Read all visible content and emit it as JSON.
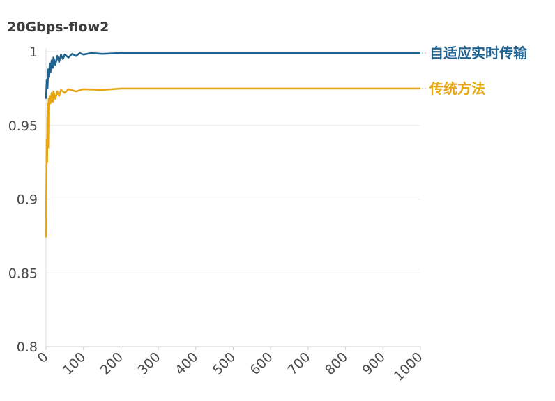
{
  "chart_data": {
    "type": "line",
    "title": "20Gbps-flow2",
    "xlabel": "",
    "ylabel": "",
    "xlim": [
      0,
      1000
    ],
    "ylim": [
      0.8,
      1.0
    ],
    "x_ticks": [
      0,
      100,
      200,
      300,
      400,
      500,
      600,
      700,
      800,
      900,
      1000
    ],
    "y_ticks": [
      {
        "value": 0.8,
        "label": "0.8"
      },
      {
        "value": 0.85,
        "label": "0.85"
      },
      {
        "value": 0.9,
        "label": "0.9"
      },
      {
        "value": 0.95,
        "label": "0.95"
      },
      {
        "value": 1.0,
        "label": "1"
      }
    ],
    "grid": "horizontal",
    "legend": "inline-right",
    "series": [
      {
        "name": "自适应实时传输",
        "color": "#1f6391",
        "x": [
          0,
          2,
          4,
          6,
          8,
          10,
          12,
          15,
          18,
          20,
          25,
          30,
          35,
          40,
          45,
          50,
          60,
          70,
          80,
          90,
          100,
          120,
          150,
          200,
          300,
          400,
          500,
          600,
          700,
          800,
          900,
          1000
        ],
        "values": [
          0.968,
          0.981,
          0.975,
          0.988,
          0.983,
          0.992,
          0.986,
          0.994,
          0.989,
          0.996,
          0.991,
          0.997,
          0.993,
          0.998,
          0.995,
          0.998,
          0.996,
          0.9985,
          0.997,
          0.999,
          0.998,
          0.999,
          0.9985,
          0.999,
          0.999,
          0.999,
          0.999,
          0.999,
          0.999,
          0.999,
          0.999,
          0.999
        ]
      },
      {
        "name": "传统方法",
        "color": "#e8a710",
        "x": [
          0,
          1,
          2,
          3,
          4,
          5,
          6,
          7,
          8,
          10,
          12,
          15,
          18,
          20,
          25,
          30,
          35,
          40,
          50,
          60,
          80,
          100,
          150,
          200,
          300,
          400,
          500,
          600,
          700,
          800,
          900,
          1000
        ],
        "values": [
          0.874,
          0.91,
          0.94,
          0.925,
          0.955,
          0.965,
          0.935,
          0.968,
          0.96,
          0.97,
          0.965,
          0.972,
          0.966,
          0.973,
          0.968,
          0.973,
          0.97,
          0.974,
          0.972,
          0.9745,
          0.973,
          0.9745,
          0.974,
          0.975,
          0.975,
          0.975,
          0.975,
          0.975,
          0.975,
          0.975,
          0.975,
          0.975
        ]
      }
    ]
  }
}
